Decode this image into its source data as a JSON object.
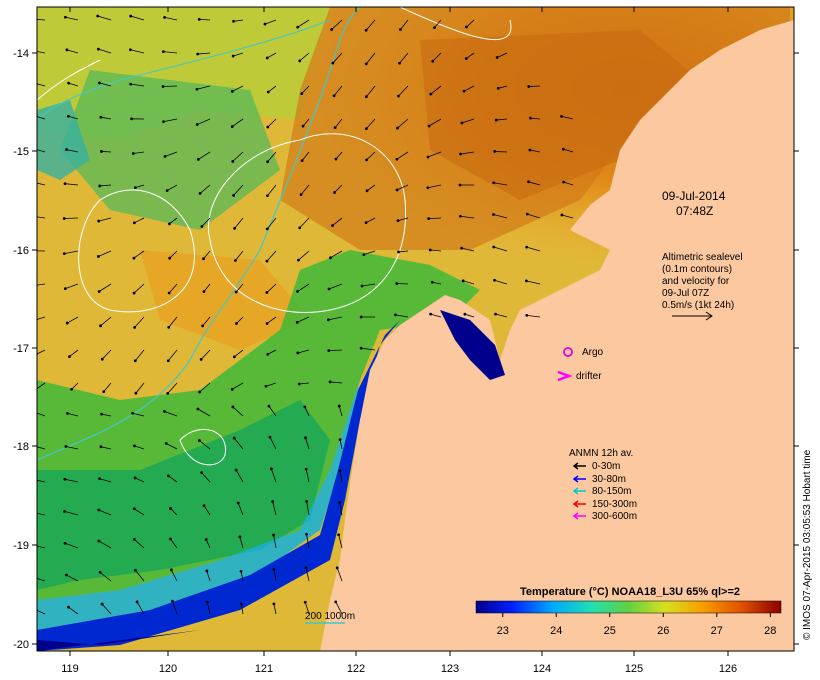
{
  "map": {
    "date": "09-Jul-2014",
    "time": "07:48Z",
    "sealevel_note": [
      "Altimetric sealevel",
      "(0.1m contours)",
      "and velocity for",
      "09-Jul 07Z",
      "0.5m/s (1kt 24h)"
    ],
    "argo_label": "Argo",
    "drifter_label": "drifter",
    "anmn_title": "ANMN 12h av.",
    "anmn_items": [
      {
        "label": "0-30m",
        "color": "#000000"
      },
      {
        "label": "30-80m",
        "color": "#0000ff"
      },
      {
        "label": "80-150m",
        "color": "#00cccc"
      },
      {
        "label": "150-300m",
        "color": "#ff0000"
      },
      {
        "label": "300-600m",
        "color": "#ff00ff"
      }
    ],
    "colorbar_title": "Temperature (°C) NOAA18_L3U 65% ql>=2",
    "colorbar_ticks": [
      "23",
      "24",
      "25",
      "26",
      "27",
      "28"
    ],
    "colorbar_range": [
      22.5,
      28.2
    ],
    "bathy_label": "200  1000m",
    "credit": "© IMOS 07-Apr-2015 03:05:53 Hobart time",
    "lon_ticks": [
      "119",
      "120",
      "121",
      "122",
      "123",
      "124",
      "125",
      "126"
    ],
    "lat_ticks": [
      "-14",
      "-15",
      "-16",
      "-17",
      "-18",
      "-19",
      "-20"
    ],
    "colors": {
      "land": "#fcc8a0",
      "deep_blue": "#00008c",
      "isobath_200": "#40c8c8",
      "sealevel_contour": "#ffffff",
      "argo": "#dd00dd",
      "drifter": "#ff00ff"
    }
  }
}
